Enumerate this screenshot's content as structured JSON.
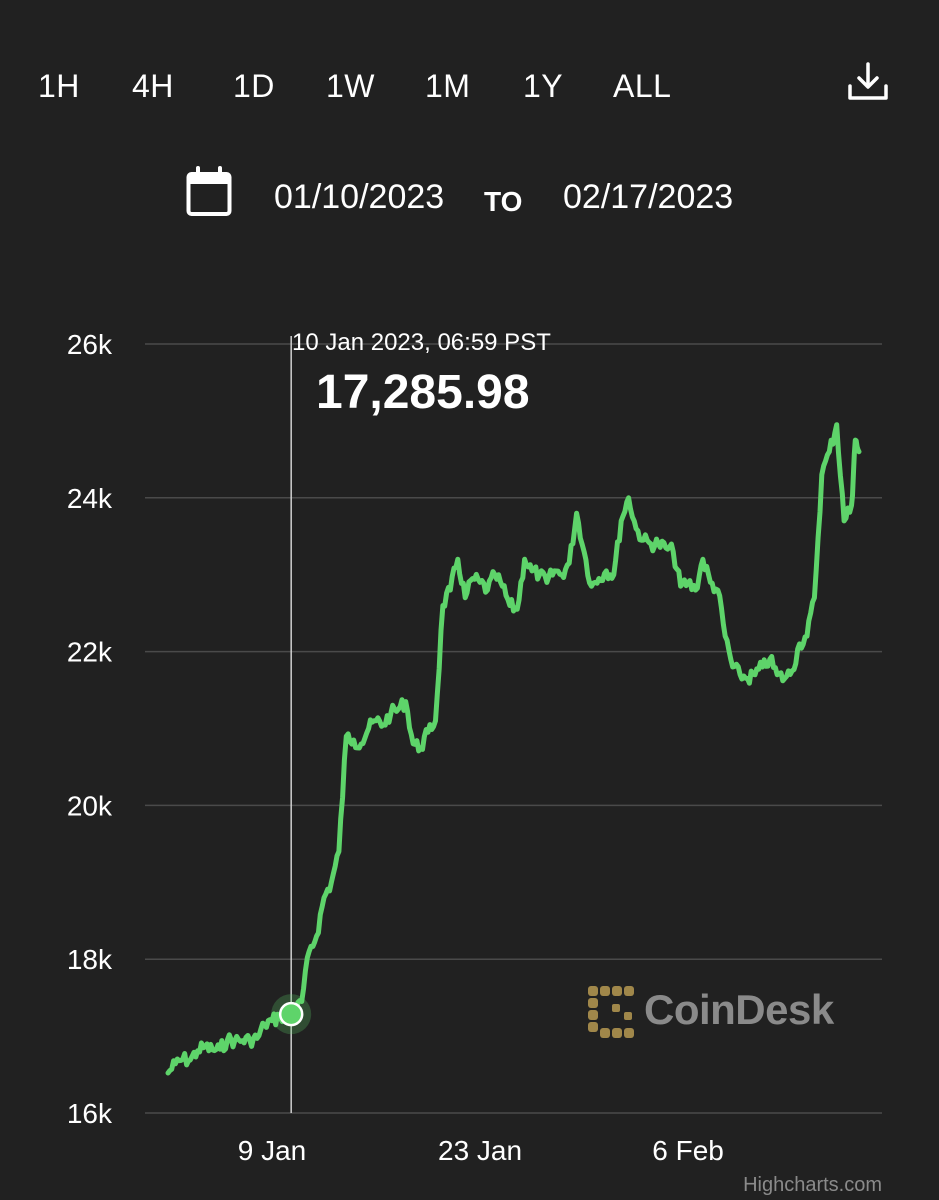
{
  "range_buttons": [
    {
      "label": "1H"
    },
    {
      "label": "4H"
    },
    {
      "label": "1D"
    },
    {
      "label": "1W"
    },
    {
      "label": "1M"
    },
    {
      "label": "1Y"
    },
    {
      "label": "ALL"
    }
  ],
  "download": {
    "icon": "download-icon"
  },
  "date_range": {
    "calendar_icon": "calendar-icon",
    "from_value": "01/10/2023",
    "to_label": "TO",
    "to_value": "02/17/2023"
  },
  "tooltip": {
    "date": "10 Jan 2023, 06:59 PST",
    "value": "17,285.98"
  },
  "watermark": {
    "text": "CoinDesk",
    "logo_color": "#a0874a"
  },
  "credits": "Highcharts.com",
  "colors": {
    "background": "#212121",
    "line": "#5ed46a",
    "grid": "#4a4a4a",
    "crosshair": "#d0d0d0"
  },
  "chart_data": {
    "type": "line",
    "title": "",
    "xlabel": "",
    "ylabel": "",
    "ylim": [
      16000,
      26000
    ],
    "y_ticks": [
      "16k",
      "18k",
      "20k",
      "22k",
      "24k",
      "26k"
    ],
    "x_ticks": [
      "9 Jan",
      "23 Jan",
      "6 Feb"
    ],
    "x_range": [
      "2023-01-02",
      "2023-02-18"
    ],
    "grid": true,
    "legend": "none",
    "highlight": {
      "x": "2023-01-10T06:59",
      "y": 17285.98
    },
    "series": [
      {
        "points": [
          [
            "2023-01-02T00:00",
            16520
          ],
          [
            "2023-01-02T12:00",
            16640
          ],
          [
            "2023-01-03T00:00",
            16700
          ],
          [
            "2023-01-03T12:00",
            16690
          ],
          [
            "2023-01-04T00:00",
            16810
          ],
          [
            "2023-01-04T12:00",
            16860
          ],
          [
            "2023-01-05T00:00",
            16820
          ],
          [
            "2023-01-05T12:00",
            16830
          ],
          [
            "2023-01-06T00:00",
            16950
          ],
          [
            "2023-01-06T12:00",
            16940
          ],
          [
            "2023-01-07T00:00",
            16940
          ],
          [
            "2023-01-07T12:00",
            16950
          ],
          [
            "2023-01-08T00:00",
            16970
          ],
          [
            "2023-01-08T12:00",
            17150
          ],
          [
            "2023-01-09T00:00",
            17200
          ],
          [
            "2023-01-09T12:00",
            17250
          ],
          [
            "2023-01-10T06:59",
            17285.98
          ],
          [
            "2023-01-10T12:00",
            17300
          ],
          [
            "2023-01-11T00:00",
            17450
          ],
          [
            "2023-01-11T12:00",
            18100
          ],
          [
            "2023-01-12T00:00",
            18300
          ],
          [
            "2023-01-12T12:00",
            18800
          ],
          [
            "2023-01-13T00:00",
            19000
          ],
          [
            "2023-01-13T12:00",
            19400
          ],
          [
            "2023-01-14T00:00",
            20900
          ],
          [
            "2023-01-14T12:00",
            20850
          ],
          [
            "2023-01-15T00:00",
            20800
          ],
          [
            "2023-01-15T12:00",
            21000
          ],
          [
            "2023-01-16T00:00",
            21100
          ],
          [
            "2023-01-16T12:00",
            21050
          ],
          [
            "2023-01-17T00:00",
            21200
          ],
          [
            "2023-01-17T12:00",
            21250
          ],
          [
            "2023-01-18T00:00",
            21350
          ],
          [
            "2023-01-18T12:00",
            20800
          ],
          [
            "2023-01-19T00:00",
            20750
          ],
          [
            "2023-01-19T12:00",
            20950
          ],
          [
            "2023-01-20T00:00",
            21100
          ],
          [
            "2023-01-20T12:00",
            22600
          ],
          [
            "2023-01-21T00:00",
            22800
          ],
          [
            "2023-01-21T12:00",
            23200
          ],
          [
            "2023-01-22T00:00",
            22700
          ],
          [
            "2023-01-22T12:00",
            22950
          ],
          [
            "2023-01-23T00:00",
            22900
          ],
          [
            "2023-01-23T12:00",
            22800
          ],
          [
            "2023-01-24T00:00",
            23000
          ],
          [
            "2023-01-24T12:00",
            22850
          ],
          [
            "2023-01-25T00:00",
            22600
          ],
          [
            "2023-01-25T12:00",
            22550
          ],
          [
            "2023-01-26T00:00",
            23200
          ],
          [
            "2023-01-26T12:00",
            23050
          ],
          [
            "2023-01-27T00:00",
            23000
          ],
          [
            "2023-01-27T12:00",
            22900
          ],
          [
            "2023-01-28T00:00",
            23050
          ],
          [
            "2023-01-28T12:00",
            23000
          ],
          [
            "2023-01-29T00:00",
            23150
          ],
          [
            "2023-01-29T12:00",
            23800
          ],
          [
            "2023-01-30T00:00",
            23300
          ],
          [
            "2023-01-30T12:00",
            22850
          ],
          [
            "2023-01-31T00:00",
            22950
          ],
          [
            "2023-01-31T12:00",
            23050
          ],
          [
            "2023-02-01T00:00",
            23000
          ],
          [
            "2023-02-01T12:00",
            23700
          ],
          [
            "2023-02-02T00:00",
            24000
          ],
          [
            "2023-02-02T12:00",
            23600
          ],
          [
            "2023-02-03T00:00",
            23450
          ],
          [
            "2023-02-03T12:00",
            23400
          ],
          [
            "2023-02-04T00:00",
            23400
          ],
          [
            "2023-02-04T12:00",
            23350
          ],
          [
            "2023-02-05T00:00",
            23300
          ],
          [
            "2023-02-05T12:00",
            22850
          ],
          [
            "2023-02-06T00:00",
            22900
          ],
          [
            "2023-02-06T12:00",
            22800
          ],
          [
            "2023-02-07T00:00",
            23200
          ],
          [
            "2023-02-07T12:00",
            22900
          ],
          [
            "2023-02-08T00:00",
            22800
          ],
          [
            "2023-02-08T12:00",
            22200
          ],
          [
            "2023-02-09T00:00",
            21800
          ],
          [
            "2023-02-09T12:00",
            21700
          ],
          [
            "2023-02-10T00:00",
            21650
          ],
          [
            "2023-02-10T12:00",
            21700
          ],
          [
            "2023-02-11T00:00",
            21800
          ],
          [
            "2023-02-11T12:00",
            21900
          ],
          [
            "2023-02-12T00:00",
            21700
          ],
          [
            "2023-02-12T12:00",
            21650
          ],
          [
            "2023-02-13T00:00",
            21750
          ],
          [
            "2023-02-13T12:00",
            22100
          ],
          [
            "2023-02-14T00:00",
            22200
          ],
          [
            "2023-02-14T12:00",
            22700
          ],
          [
            "2023-02-15T00:00",
            24300
          ],
          [
            "2023-02-15T12:00",
            24600
          ],
          [
            "2023-02-16T00:00",
            24950
          ],
          [
            "2023-02-16T12:00",
            23700
          ],
          [
            "2023-02-17T00:00",
            23900
          ],
          [
            "2023-02-17T06:00",
            24750
          ],
          [
            "2023-02-17T12:00",
            24600
          ]
        ]
      }
    ]
  }
}
